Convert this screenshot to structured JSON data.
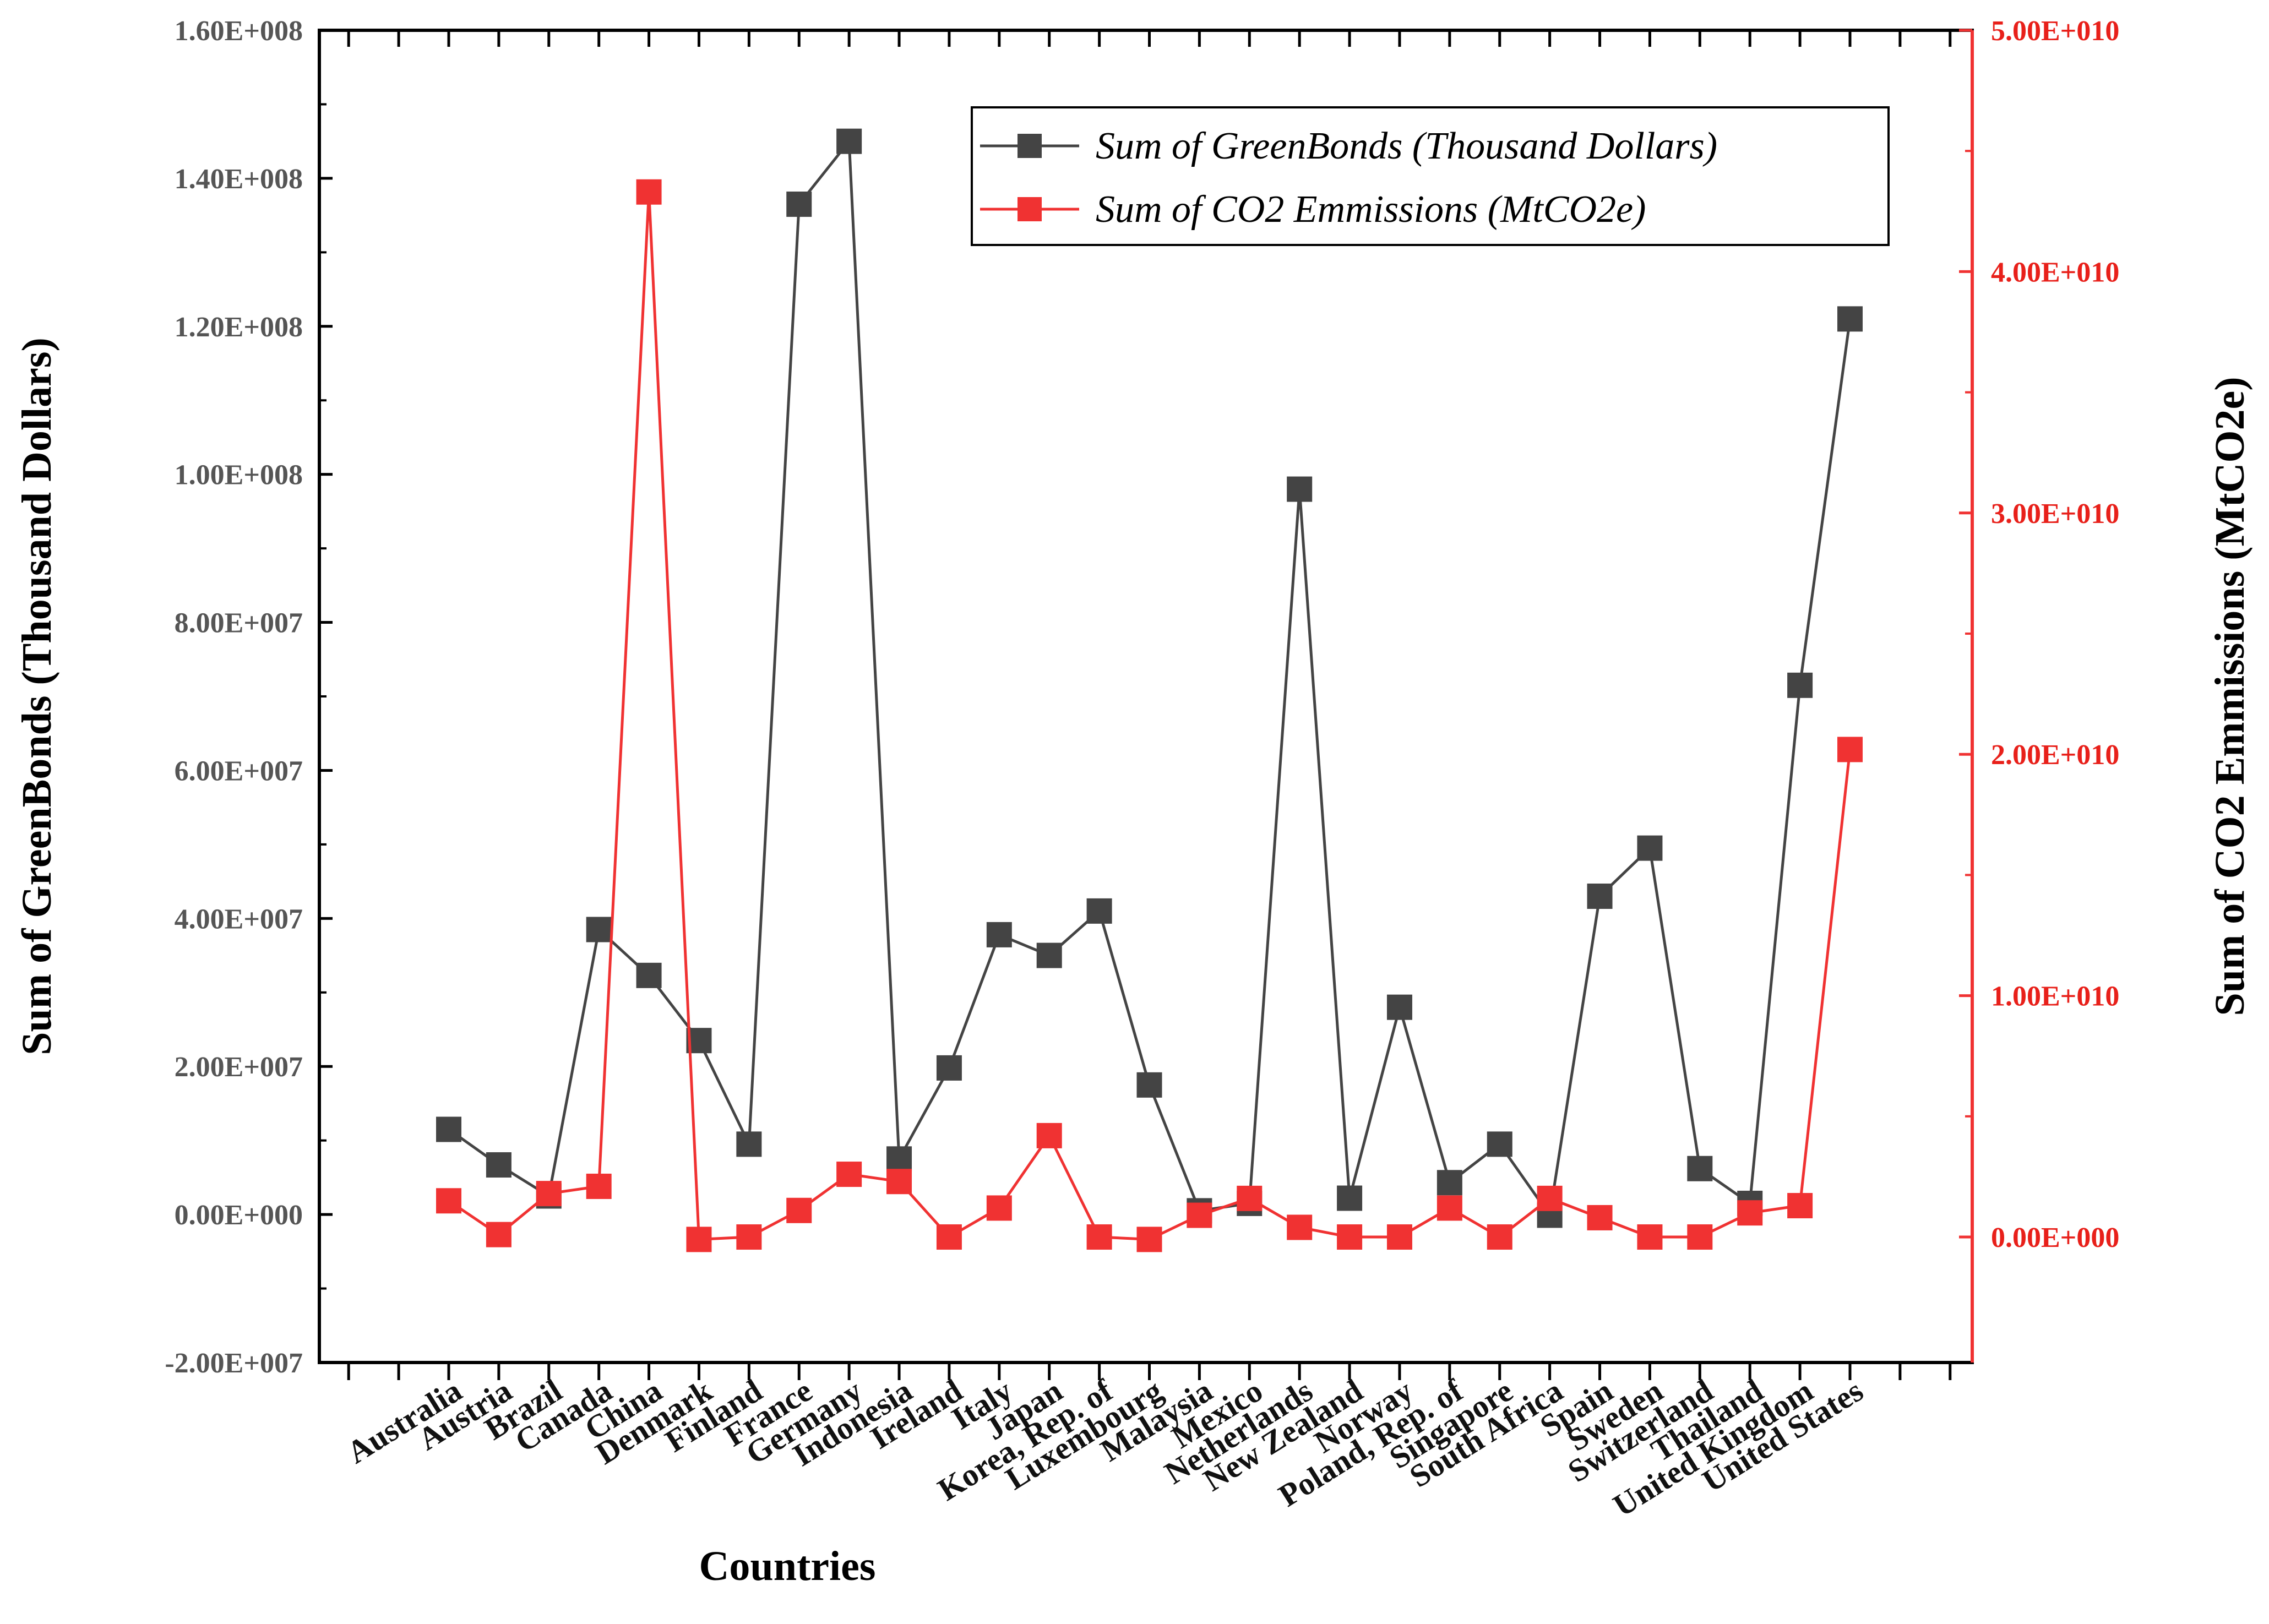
{
  "chart_data": {
    "type": "line",
    "xlabel": "Countries",
    "ylabel": "Sum of GreenBonds (Thousand Dollars)",
    "y2label": "Sum of CO2 Emmissions (MtCO2e)",
    "categories": [
      "Australia",
      "Austria",
      "Brazil",
      "Canada",
      "China",
      "Denmark",
      "Finland",
      "France",
      "Germany",
      "Indonesia",
      "Ireland",
      "Italy",
      "Japan",
      "Korea, Rep. of",
      "Luxembourg",
      "Malaysia",
      "Mexico",
      "Netherlands",
      "New Zealand",
      "Norway",
      "Poland, Rep. of",
      "Singapore",
      "South Africa",
      "Spain",
      "Sweden",
      "Switzerland",
      "Thailand",
      "United Kingdom",
      "United States"
    ],
    "ylim": [
      -20000000,
      160000000
    ],
    "y2lim": [
      -5200000000,
      50000000000
    ],
    "yticks": [
      -20000000,
      0,
      20000000,
      40000000,
      60000000,
      80000000,
      100000000,
      120000000,
      140000000,
      160000000
    ],
    "ytick_labels": [
      "-2.00E+007",
      "0.00E+000",
      "2.00E+007",
      "4.00E+007",
      "6.00E+007",
      "8.00E+007",
      "1.00E+008",
      "1.20E+008",
      "1.40E+008",
      "1.60E+008"
    ],
    "y2ticks": [
      0,
      10000000000,
      20000000000,
      30000000000,
      40000000000,
      50000000000
    ],
    "y2tick_labels": [
      "0.00E+000",
      "1.00E+010",
      "2.00E+010",
      "3.00E+010",
      "4.00E+010",
      "5.00E+010"
    ],
    "series": [
      {
        "name": "Sum of GreenBonds (Thousand Dollars)",
        "axis": "left",
        "color": "#444444",
        "values": [
          11500000,
          6700000,
          2500000,
          38500000,
          32300000,
          23500000,
          9500000,
          136500000,
          145000000,
          7500000,
          19800000,
          37800000,
          35000000,
          41000000,
          17500000,
          500000,
          1500000,
          98000000,
          2200000,
          28000000,
          4300000,
          9500000,
          -100000,
          43000000,
          49500000,
          6200000,
          1500000,
          71500000,
          121000000
        ]
      },
      {
        "name": "Sum of CO2 Emmissions (MtCO2e)",
        "axis": "right",
        "color": "#f03232",
        "values": [
          1500000000,
          100000000,
          1800000000,
          2100000000,
          43300000000,
          -100000000,
          0,
          1100000000,
          2600000000,
          2300000000,
          0,
          1200000000,
          4200000000,
          0,
          -100000000,
          900000000,
          1600000000,
          400000000,
          0,
          0,
          1200000000,
          0,
          1600000000,
          800000000,
          0,
          0,
          1000000000,
          1300000000,
          20200000000
        ]
      }
    ],
    "legend": "top-right"
  }
}
